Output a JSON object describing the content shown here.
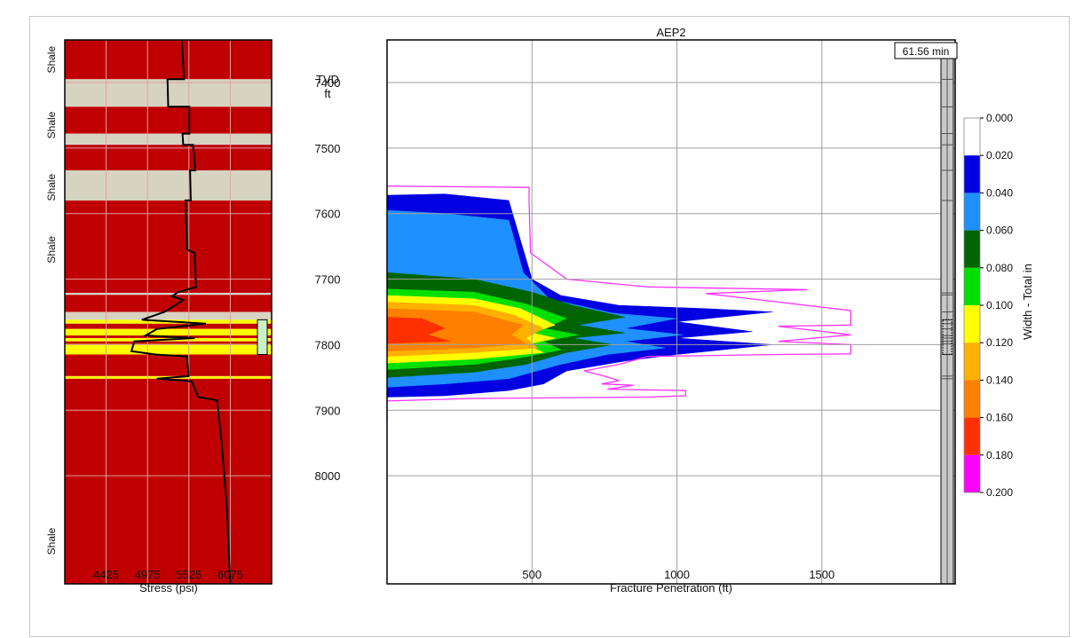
{
  "chart_data": [
    {
      "type": "area",
      "panel": "stress-profile",
      "xlabel": "Stress (psi)",
      "x_ticks": [
        4425,
        4975,
        5525,
        6075
      ],
      "xlim": [
        3875,
        6625
      ],
      "ylim": [
        7335,
        8165
      ],
      "formation_labels": [
        {
          "text": "Shale",
          "depth": 7365
        },
        {
          "text": "Shale",
          "depth": 7465
        },
        {
          "text": "Shale",
          "depth": 7560
        },
        {
          "text": "Shale",
          "depth": 7655
        },
        {
          "text": "Shale",
          "depth": 8100
        }
      ],
      "layers": [
        {
          "top": 7335,
          "bottom": 7395,
          "kind": "shale"
        },
        {
          "top": 7395,
          "bottom": 7437,
          "kind": "sand"
        },
        {
          "top": 7437,
          "bottom": 7478,
          "kind": "shale"
        },
        {
          "top": 7478,
          "bottom": 7495,
          "kind": "sand"
        },
        {
          "top": 7495,
          "bottom": 7534,
          "kind": "shale"
        },
        {
          "top": 7534,
          "bottom": 7580,
          "kind": "sand"
        },
        {
          "top": 7580,
          "bottom": 7721,
          "kind": "shale"
        },
        {
          "top": 7721,
          "bottom": 7724,
          "kind": "sand"
        },
        {
          "top": 7724,
          "bottom": 7750,
          "kind": "shale"
        },
        {
          "top": 7750,
          "bottom": 7762,
          "kind": "sand"
        },
        {
          "top": 7762,
          "bottom": 7768,
          "kind": "pay"
        },
        {
          "top": 7768,
          "bottom": 7776,
          "kind": "shale"
        },
        {
          "top": 7776,
          "bottom": 7786,
          "kind": "pay"
        },
        {
          "top": 7786,
          "bottom": 7790,
          "kind": "shale"
        },
        {
          "top": 7790,
          "bottom": 7795,
          "kind": "pay"
        },
        {
          "top": 7795,
          "bottom": 7799,
          "kind": "shale"
        },
        {
          "top": 7799,
          "bottom": 7815,
          "kind": "pay"
        },
        {
          "top": 7815,
          "bottom": 7848,
          "kind": "shale"
        },
        {
          "top": 7848,
          "bottom": 7852,
          "kind": "pay"
        },
        {
          "top": 7852,
          "bottom": 8165,
          "kind": "shale"
        }
      ],
      "stress_curve": [
        [
          5430,
          7335
        ],
        [
          5460,
          7395
        ],
        [
          5240,
          7395
        ],
        [
          5250,
          7437
        ],
        [
          5530,
          7437
        ],
        [
          5530,
          7478
        ],
        [
          5440,
          7478
        ],
        [
          5450,
          7495
        ],
        [
          5580,
          7495
        ],
        [
          5610,
          7534
        ],
        [
          5540,
          7534
        ],
        [
          5550,
          7580
        ],
        [
          5480,
          7580
        ],
        [
          5500,
          7655
        ],
        [
          5600,
          7660
        ],
        [
          5620,
          7712
        ],
        [
          5380,
          7720
        ],
        [
          5300,
          7726
        ],
        [
          5450,
          7732
        ],
        [
          5200,
          7750
        ],
        [
          4900,
          7762
        ],
        [
          5750,
          7768
        ],
        [
          5100,
          7776
        ],
        [
          4950,
          7786
        ],
        [
          5600,
          7790
        ],
        [
          4800,
          7795
        ],
        [
          4760,
          7810
        ],
        [
          5080,
          7815
        ],
        [
          5500,
          7818
        ],
        [
          5520,
          7848
        ],
        [
          5100,
          7852
        ],
        [
          5560,
          7856
        ],
        [
          5650,
          7880
        ],
        [
          5900,
          7885
        ],
        [
          5960,
          7950
        ],
        [
          6030,
          8050
        ],
        [
          6075,
          8165
        ]
      ],
      "perforation": {
        "top": 7762,
        "bottom": 7815
      }
    },
    {
      "type": "heatmap",
      "panel": "fracture-width",
      "title": "AEP2",
      "time_label": "61.56 min",
      "xlabel": "Fracture Penetration (ft)",
      "ylabel_lines": [
        "TVD",
        "ft"
      ],
      "x_ticks": [
        500,
        1000,
        1500
      ],
      "y_ticks": [
        7400,
        7500,
        7600,
        7700,
        7800,
        7900,
        8000
      ],
      "xlim": [
        0,
        1960
      ],
      "ylim": [
        7335,
        8165
      ],
      "colorbar": {
        "label": "Width - Total in",
        "ticks": [
          "0.000",
          "0.020",
          "0.040",
          "0.060",
          "0.080",
          "0.100",
          "0.120",
          "0.140",
          "0.160",
          "0.180",
          "0.200"
        ],
        "colors": [
          "#ffffff",
          "#0000e0",
          "#1e90ff",
          "#006400",
          "#00e000",
          "#ffff00",
          "#ffb000",
          "#ff8000",
          "#ff3000",
          "#ff00ff"
        ]
      },
      "width_contours": [
        {
          "level": "0.020",
          "color": "#0000e0",
          "outline": [
            [
              0,
              7572
            ],
            [
              200,
              7570
            ],
            [
              420,
              7580
            ],
            [
              460,
              7640
            ],
            [
              500,
              7700
            ],
            [
              600,
              7725
            ],
            [
              800,
              7740
            ],
            [
              1100,
              7745
            ],
            [
              1330,
              7750
            ],
            [
              1000,
              7765
            ],
            [
              1260,
              7780
            ],
            [
              1000,
              7790
            ],
            [
              1330,
              7800
            ],
            [
              1000,
              7815
            ],
            [
              820,
              7825
            ],
            [
              620,
              7840
            ],
            [
              540,
              7860
            ],
            [
              420,
              7870
            ],
            [
              200,
              7878
            ],
            [
              0,
              7880
            ]
          ]
        },
        {
          "level": "0.040",
          "color": "#1e90ff",
          "outline": [
            [
              0,
              7595
            ],
            [
              200,
              7600
            ],
            [
              420,
              7610
            ],
            [
              470,
              7690
            ],
            [
              560,
              7730
            ],
            [
              780,
              7752
            ],
            [
              1000,
              7760
            ],
            [
              820,
              7775
            ],
            [
              1020,
              7785
            ],
            [
              820,
              7795
            ],
            [
              960,
              7805
            ],
            [
              760,
              7815
            ],
            [
              600,
              7830
            ],
            [
              420,
              7852
            ],
            [
              200,
              7860
            ],
            [
              0,
              7865
            ]
          ]
        },
        {
          "level": "0.060",
          "color": "#006400",
          "outline": [
            [
              0,
              7690
            ],
            [
              300,
              7700
            ],
            [
              500,
              7720
            ],
            [
              640,
              7740
            ],
            [
              820,
              7758
            ],
            [
              660,
              7770
            ],
            [
              820,
              7782
            ],
            [
              640,
              7790
            ],
            [
              780,
              7800
            ],
            [
              620,
              7812
            ],
            [
              480,
              7830
            ],
            [
              300,
              7842
            ],
            [
              0,
              7850
            ]
          ]
        },
        {
          "level": "0.080",
          "color": "#00e000",
          "outline": [
            [
              0,
              7715
            ],
            [
              300,
              7720
            ],
            [
              480,
              7738
            ],
            [
              620,
              7760
            ],
            [
              540,
              7775
            ],
            [
              660,
              7785
            ],
            [
              540,
              7795
            ],
            [
              600,
              7808
            ],
            [
              460,
              7820
            ],
            [
              300,
              7830
            ],
            [
              0,
              7838
            ]
          ]
        },
        {
          "level": "0.100",
          "color": "#ffff00",
          "outline": [
            [
              0,
              7725
            ],
            [
              300,
              7730
            ],
            [
              460,
              7745
            ],
            [
              580,
              7770
            ],
            [
              500,
              7782
            ],
            [
              580,
              7790
            ],
            [
              480,
              7800
            ],
            [
              540,
              7812
            ],
            [
              300,
              7822
            ],
            [
              0,
              7828
            ]
          ]
        },
        {
          "level": "0.120",
          "color": "#ffb000",
          "outline": [
            [
              0,
              7735
            ],
            [
              300,
              7740
            ],
            [
              440,
              7755
            ],
            [
              540,
              7775
            ],
            [
              480,
              7790
            ],
            [
              520,
              7805
            ],
            [
              300,
              7812
            ],
            [
              0,
              7818
            ]
          ]
        },
        {
          "level": "0.140",
          "color": "#ff8000",
          "outline": [
            [
              0,
              7745
            ],
            [
              300,
              7750
            ],
            [
              470,
              7770
            ],
            [
              430,
              7785
            ],
            [
              480,
              7798
            ],
            [
              300,
              7805
            ],
            [
              0,
              7810
            ]
          ]
        },
        {
          "level": "0.160",
          "color": "#ff3000",
          "outline": [
            [
              0,
              7758
            ],
            [
              120,
              7760
            ],
            [
              200,
              7775
            ],
            [
              140,
              7785
            ],
            [
              220,
              7795
            ],
            [
              0,
              7798
            ]
          ]
        }
      ],
      "envelope": [
        [
          0,
          7558
        ],
        [
          490,
          7560
        ],
        [
          490,
          7580
        ],
        [
          495,
          7660
        ],
        [
          620,
          7700
        ],
        [
          900,
          7712
        ],
        [
          1450,
          7716
        ],
        [
          1100,
          7722
        ],
        [
          1350,
          7735
        ],
        [
          1600,
          7748
        ],
        [
          1600,
          7770
        ],
        [
          1350,
          7772
        ],
        [
          1600,
          7785
        ],
        [
          1350,
          7795
        ],
        [
          1600,
          7800
        ],
        [
          1600,
          7814
        ],
        [
          1350,
          7815
        ],
        [
          900,
          7818
        ],
        [
          800,
          7830
        ],
        [
          680,
          7840
        ],
        [
          750,
          7848
        ],
        [
          800,
          7855
        ],
        [
          740,
          7860
        ],
        [
          850,
          7862
        ],
        [
          760,
          7868
        ],
        [
          1030,
          7870
        ],
        [
          1030,
          7878
        ],
        [
          900,
          7880
        ],
        [
          300,
          7882
        ],
        [
          0,
          7886
        ],
        [
          0,
          7918
        ]
      ]
    }
  ]
}
